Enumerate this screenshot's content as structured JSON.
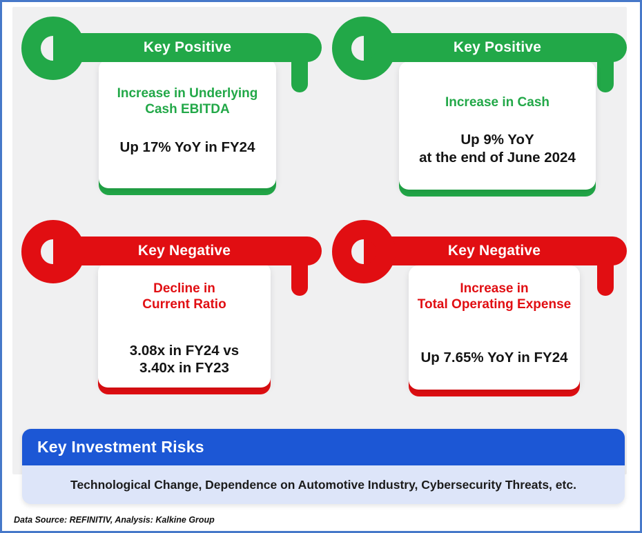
{
  "colors": {
    "positive": "#22A848",
    "negative": "#E10E12",
    "banner_blue": "#1C57D5",
    "risk_bg": "#DDE5F9",
    "frame_border": "#4678C9",
    "panel_bg": "#F0F0F1"
  },
  "cards": [
    {
      "id": "top-left",
      "sentiment": "positive",
      "label": "Key Positive",
      "heading": "Increase in Underlying\nCash EBITDA",
      "detail": "Up 17% YoY in FY24"
    },
    {
      "id": "top-right",
      "sentiment": "positive",
      "label": "Key Positive",
      "heading": "Increase in Cash",
      "detail": "Up 9% YoY\nat the end of June 2024"
    },
    {
      "id": "bottom-left",
      "sentiment": "negative",
      "label": "Key Negative",
      "heading": "Decline in\nCurrent Ratio",
      "detail": "3.08x in FY24 vs\n3.40x in FY23"
    },
    {
      "id": "bottom-right",
      "sentiment": "negative",
      "label": "Key Negative",
      "heading": "Increase in\nTotal Operating Expense",
      "detail": "Up 7.65% YoY in FY24"
    }
  ],
  "risks": {
    "title": "Key Investment Risks",
    "text": "Technological Change, Dependence on Automotive Industry, Cybersecurity Threats, etc."
  },
  "footer": {
    "source": "Data Source: REFINITIV, Analysis: Kalkine Group"
  }
}
